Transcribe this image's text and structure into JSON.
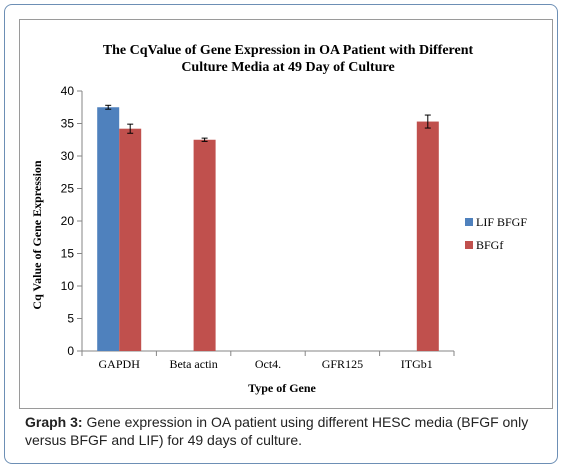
{
  "chart_data": {
    "type": "bar",
    "title_line1": "The CqValue of Gene Expression in OA Patient with Different",
    "title_line2": "Culture Media at 49 Day of Culture",
    "xlabel": "Type of Gene",
    "ylabel": "Cq Value of Gene Expression",
    "categories": [
      "GAPDH",
      "Beta actin",
      "Oct4.",
      "GFR125",
      "ITGb1"
    ],
    "ylim": [
      0,
      40
    ],
    "yticks": [
      0,
      5,
      10,
      15,
      20,
      25,
      30,
      35,
      40
    ],
    "grid": false,
    "legend_position": "right",
    "series": [
      {
        "name": "LIF BFGF",
        "color": "#4f81bd",
        "values": [
          37.5,
          null,
          null,
          null,
          null
        ],
        "errors": [
          0.3,
          null,
          null,
          null,
          null
        ]
      },
      {
        "name": "BFGf",
        "color": "#c0504d",
        "values": [
          34.2,
          32.5,
          null,
          null,
          35.3
        ],
        "errors": [
          0.7,
          0.25,
          null,
          null,
          1.0
        ]
      }
    ]
  },
  "caption": {
    "label": "Graph 3:",
    "text": " Gene expression in OA patient using different HESC media (BFGF only versus BFGF and LIF) for 49 days of culture."
  }
}
